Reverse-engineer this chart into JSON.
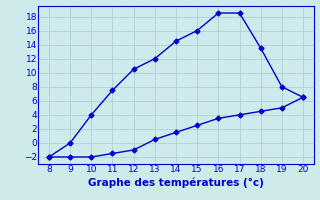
{
  "x": [
    8,
    9,
    10,
    11,
    12,
    13,
    14,
    15,
    16,
    17,
    18,
    19,
    20
  ],
  "y_max": [
    -2,
    0,
    4,
    7.5,
    10.5,
    12,
    14.5,
    16,
    18.5,
    18.5,
    13.5,
    8,
    6.5
  ],
  "y_min": [
    -2,
    -2,
    -2,
    -1.5,
    -1,
    0.5,
    1.5,
    2.5,
    3.5,
    4,
    4.5,
    5,
    6.5
  ],
  "line_color": "#0000cc",
  "bg_color": "#ceeaea",
  "grid_color": "#aad4d4",
  "xlabel": "Graphe des températures (°c)",
  "xlim": [
    7.5,
    20.5
  ],
  "ylim": [
    -3,
    19.5
  ],
  "xticks": [
    8,
    9,
    10,
    11,
    12,
    13,
    14,
    15,
    16,
    17,
    18,
    19,
    20
  ],
  "yticks": [
    -2,
    0,
    2,
    4,
    6,
    8,
    10,
    12,
    14,
    16,
    18
  ],
  "marker": "D",
  "marker_size": 2.5,
  "linewidth": 1.0,
  "xlabel_fontsize": 7.5,
  "tick_fontsize": 6.5
}
